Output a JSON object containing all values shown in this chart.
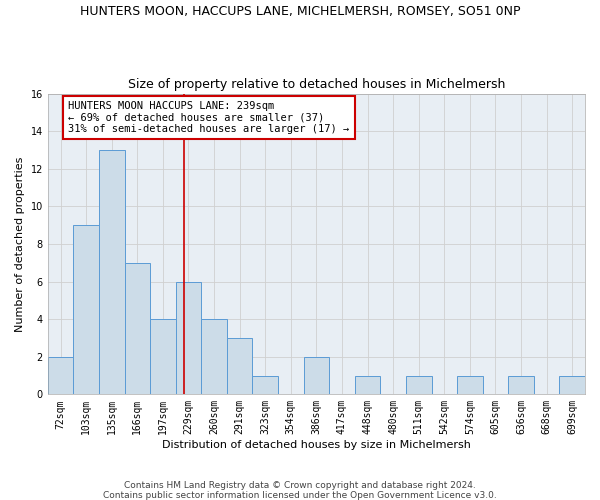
{
  "title1": "HUNTERS MOON, HACCUPS LANE, MICHELMERSH, ROMSEY, SO51 0NP",
  "title2": "Size of property relative to detached houses in Michelmersh",
  "xlabel": "Distribution of detached houses by size in Michelmersh",
  "ylabel": "Number of detached properties",
  "categories": [
    "72sqm",
    "103sqm",
    "135sqm",
    "166sqm",
    "197sqm",
    "229sqm",
    "260sqm",
    "291sqm",
    "323sqm",
    "354sqm",
    "386sqm",
    "417sqm",
    "448sqm",
    "480sqm",
    "511sqm",
    "542sqm",
    "574sqm",
    "605sqm",
    "636sqm",
    "668sqm",
    "699sqm"
  ],
  "values": [
    2,
    9,
    13,
    7,
    4,
    6,
    4,
    3,
    1,
    0,
    2,
    0,
    1,
    0,
    1,
    0,
    1,
    0,
    1,
    0,
    1
  ],
  "bar_color": "#ccdce8",
  "bar_edge_color": "#5b9bd5",
  "annotation_text_line1": "HUNTERS MOON HACCUPS LANE: 239sqm",
  "annotation_text_line2": "← 69% of detached houses are smaller (37)",
  "annotation_text_line3": "31% of semi-detached houses are larger (17) →",
  "annotation_box_color": "#ffffff",
  "annotation_border_color": "#cc0000",
  "vline_color": "#cc0000",
  "vline_x_index": 5,
  "vline_x_offset": 0.32,
  "ylim": [
    0,
    16
  ],
  "yticks": [
    0,
    2,
    4,
    6,
    8,
    10,
    12,
    14,
    16
  ],
  "grid_color": "#d0d0d0",
  "background_color": "#ffffff",
  "axes_background": "#e8eef4",
  "footer": "Contains HM Land Registry data © Crown copyright and database right 2024.\nContains public sector information licensed under the Open Government Licence v3.0.",
  "title1_fontsize": 9,
  "title2_fontsize": 9,
  "xlabel_fontsize": 8,
  "ylabel_fontsize": 8,
  "tick_fontsize": 7,
  "annotation_fontsize": 7.5,
  "footer_fontsize": 6.5
}
